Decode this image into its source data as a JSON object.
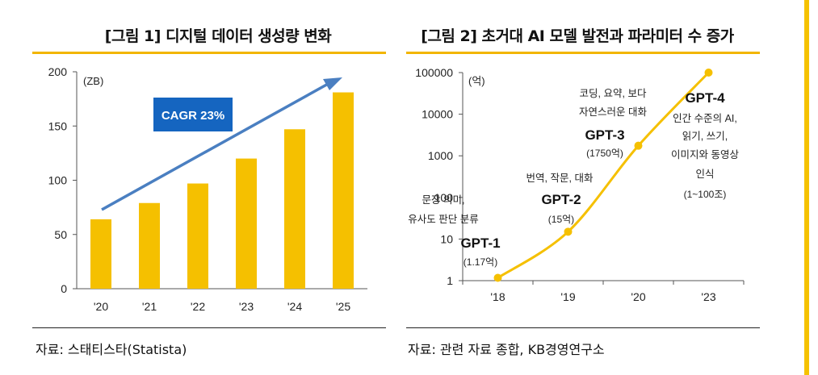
{
  "panel1": {
    "title": "[그림 1] 디지털 데이터 생성량 변화",
    "source": "자료: 스태티스타(Statista)",
    "unit": "(ZB)",
    "cagr_label": "CAGR 23%",
    "colors": {
      "bar": "#f5c000",
      "arrow": "#4a7fc1",
      "cagr_box": "#1565c0"
    }
  },
  "panel2": {
    "title": "[그림 2] 초거대 AI 모델 발전과 파라미터 수 증가",
    "source": "자료: 관련 자료 종합, KB경영연구소",
    "unit": "(억)",
    "colors": {
      "line": "#f5c000"
    },
    "annotations": [
      {
        "model": "GPT-1",
        "params": "(1.17억)",
        "desc": [
          "문장 의미,",
          "유사도 판단 분류"
        ]
      },
      {
        "model": "GPT-2",
        "params": "(15억)",
        "desc": [
          "번역, 작문, 대화"
        ]
      },
      {
        "model": "GPT-3",
        "params": "(1750억)",
        "desc": [
          "코딩, 요약, 보다",
          "자연스러운 대화"
        ]
      },
      {
        "model": "GPT-4",
        "params": "(1~100조)",
        "desc": [
          "인간 수준의 AI,",
          "읽기, 쓰기,",
          "이미지와 동영상",
          "인식"
        ]
      }
    ]
  },
  "chart_data": [
    {
      "type": "bar",
      "categories": [
        "'20",
        "'21",
        "'22",
        "'23",
        "'24",
        "'25"
      ],
      "values": [
        64,
        79,
        97,
        120,
        147,
        181
      ],
      "ylim": [
        0,
        200
      ],
      "yticks": [
        0,
        50,
        100,
        150,
        200
      ],
      "ylabel": "(ZB)",
      "annotation": "CAGR 23%",
      "grid": false
    },
    {
      "type": "line",
      "x": [
        "'18",
        "'19",
        "'20",
        "'23"
      ],
      "values": [
        1.17,
        15,
        1750,
        100000
      ],
      "yscale": "log",
      "ylim": [
        1,
        100000
      ],
      "yticks": [
        "1",
        "10",
        "100",
        "1000",
        "10000",
        "100000"
      ],
      "ylabel": "(억)",
      "grid": false
    }
  ]
}
